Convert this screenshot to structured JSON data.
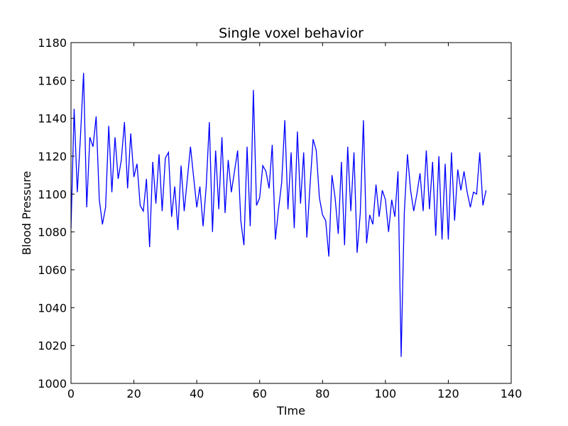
{
  "chart_data": {
    "type": "line",
    "title": "Single voxel behavior",
    "xlabel": "TIme",
    "ylabel": "Blood Pressure",
    "xlim": [
      0,
      140
    ],
    "ylim": [
      1000,
      1180
    ],
    "xticks": [
      0,
      20,
      40,
      60,
      80,
      100,
      120,
      140
    ],
    "yticks": [
      1000,
      1020,
      1040,
      1060,
      1080,
      1100,
      1120,
      1140,
      1160,
      1180
    ],
    "grid": false,
    "legend": "none",
    "series": [
      {
        "color": "#0000ff",
        "x": [
          0,
          1,
          2,
          3,
          4,
          5,
          6,
          7,
          8,
          9,
          10,
          11,
          12,
          13,
          14,
          15,
          16,
          17,
          18,
          19,
          20,
          21,
          22,
          23,
          24,
          25,
          26,
          27,
          28,
          29,
          30,
          31,
          32,
          33,
          34,
          35,
          36,
          37,
          38,
          39,
          40,
          41,
          42,
          43,
          44,
          45,
          46,
          47,
          48,
          49,
          50,
          51,
          52,
          53,
          54,
          55,
          56,
          57,
          58,
          59,
          60,
          61,
          62,
          63,
          64,
          65,
          66,
          67,
          68,
          69,
          70,
          71,
          72,
          73,
          74,
          75,
          76,
          77,
          78,
          79,
          80,
          81,
          82,
          83,
          84,
          85,
          86,
          87,
          88,
          89,
          90,
          91,
          92,
          93,
          94,
          95,
          96,
          97,
          98,
          99,
          100,
          101,
          102,
          103,
          104,
          105,
          106,
          107,
          108,
          109,
          110,
          111,
          112,
          113,
          114,
          115,
          116,
          117,
          118,
          119,
          120,
          121,
          122,
          123,
          124,
          125,
          126,
          127,
          128,
          129,
          130,
          131,
          132
        ],
        "y": [
          1082,
          1145,
          1101,
          1130,
          1164,
          1093,
          1130,
          1125,
          1141,
          1097,
          1084,
          1093,
          1136,
          1101,
          1130,
          1108,
          1118,
          1138,
          1103,
          1132,
          1109,
          1116,
          1094,
          1091,
          1108,
          1072,
          1117,
          1095,
          1121,
          1091,
          1119,
          1122,
          1088,
          1104,
          1081,
          1115,
          1091,
          1108,
          1125,
          1109,
          1093,
          1104,
          1083,
          1104,
          1138,
          1080,
          1123,
          1092,
          1130,
          1090,
          1118,
          1101,
          1112,
          1123,
          1086,
          1073,
          1125,
          1083,
          1155,
          1094,
          1098,
          1115,
          1112,
          1103,
          1126,
          1076,
          1092,
          1106,
          1139,
          1092,
          1122,
          1082,
          1133,
          1095,
          1122,
          1077,
          1104,
          1129,
          1123,
          1098,
          1089,
          1086,
          1067,
          1110,
          1098,
          1079,
          1117,
          1073,
          1125,
          1091,
          1122,
          1069,
          1090,
          1139,
          1074,
          1089,
          1084,
          1105,
          1088,
          1102,
          1097,
          1080,
          1097,
          1088,
          1112,
          1014,
          1090,
          1121,
          1102,
          1091,
          1100,
          1111,
          1091,
          1123,
          1092,
          1117,
          1078,
          1120,
          1076,
          1116,
          1076,
          1122,
          1086,
          1113,
          1102,
          1112,
          1101,
          1093,
          1101,
          1100,
          1122,
          1094,
          1102
        ]
      }
    ]
  }
}
